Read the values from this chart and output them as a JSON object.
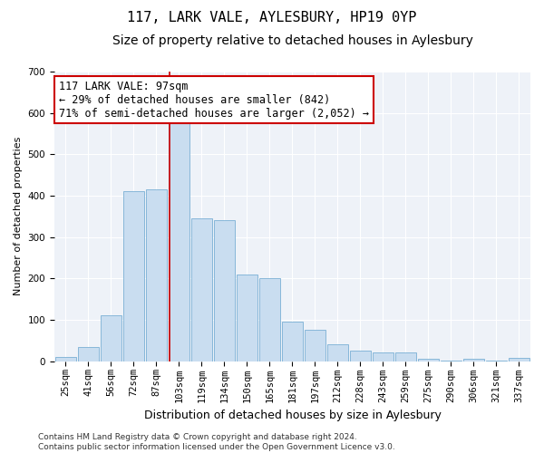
{
  "title": "117, LARK VALE, AYLESBURY, HP19 0YP",
  "subtitle": "Size of property relative to detached houses in Aylesbury",
  "xlabel": "Distribution of detached houses by size in Aylesbury",
  "ylabel": "Number of detached properties",
  "categories": [
    "25sqm",
    "41sqm",
    "56sqm",
    "72sqm",
    "87sqm",
    "103sqm",
    "119sqm",
    "134sqm",
    "150sqm",
    "165sqm",
    "181sqm",
    "197sqm",
    "212sqm",
    "228sqm",
    "243sqm",
    "259sqm",
    "275sqm",
    "290sqm",
    "306sqm",
    "321sqm",
    "337sqm"
  ],
  "values": [
    10,
    35,
    110,
    410,
    415,
    580,
    345,
    340,
    210,
    200,
    95,
    75,
    40,
    25,
    20,
    20,
    5,
    2,
    5,
    2,
    8
  ],
  "bar_color": "#c9ddf0",
  "bar_edge_color": "#7aafd4",
  "vline_color": "#cc0000",
  "vline_position": 4.57,
  "annotation_text": "117 LARK VALE: 97sqm\n← 29% of detached houses are smaller (842)\n71% of semi-detached houses are larger (2,052) →",
  "annotation_box_color": "#ffffff",
  "annotation_box_edge": "#cc0000",
  "ylim": [
    0,
    700
  ],
  "yticks": [
    0,
    100,
    200,
    300,
    400,
    500,
    600,
    700
  ],
  "plot_bg_color": "#eef2f8",
  "footer": "Contains HM Land Registry data © Crown copyright and database right 2024.\nContains public sector information licensed under the Open Government Licence v3.0.",
  "title_fontsize": 11,
  "subtitle_fontsize": 10,
  "xlabel_fontsize": 9,
  "ylabel_fontsize": 8,
  "tick_fontsize": 7.5,
  "annotation_fontsize": 8.5
}
